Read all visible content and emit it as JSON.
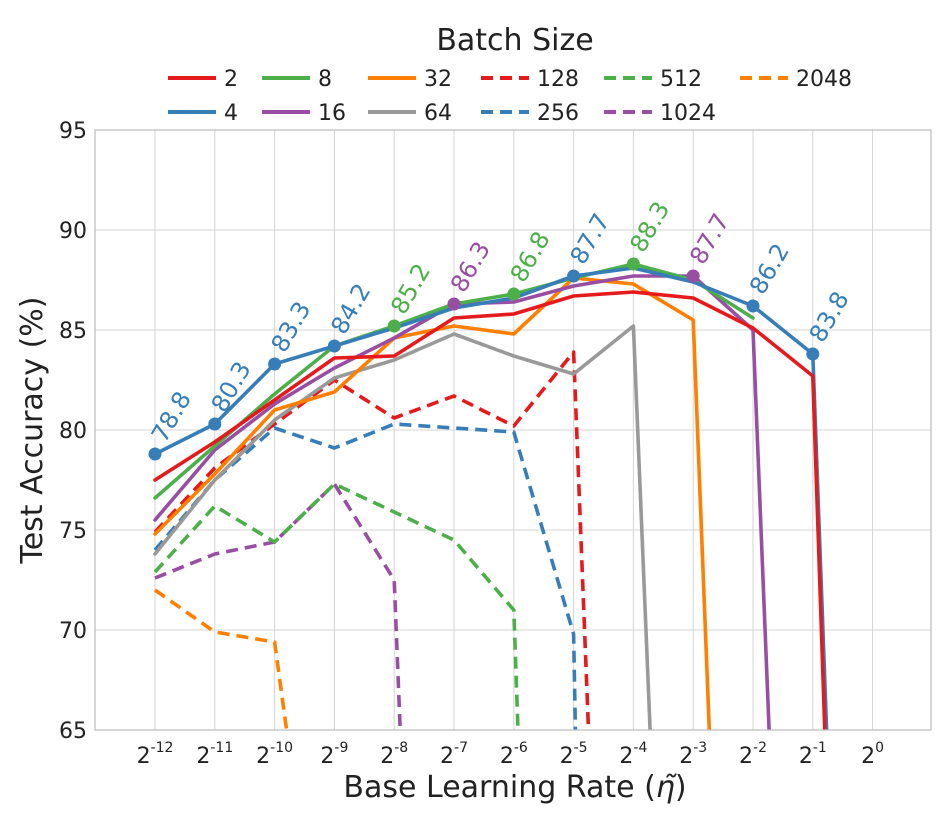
{
  "chart_data": {
    "type": "line",
    "xlabel_prefix": "Base Learning Rate (",
    "xlabel_symbol": "η̃",
    "xlabel_suffix": ")",
    "ylabel": "Test Accuracy (%)",
    "ylim": [
      65,
      95
    ],
    "yticks": [
      "65",
      "70",
      "75",
      "80",
      "85",
      "90",
      "95"
    ],
    "x_exponents": [
      -12,
      -11,
      -10,
      -9,
      -8,
      -7,
      -6,
      -5,
      -4,
      -3,
      -2,
      -1,
      0
    ],
    "x_tick_base": "2",
    "x_tick_labels": [
      "-12",
      "-11",
      "-10",
      "-9",
      "-8",
      "-7",
      "-6",
      "-5",
      "-4",
      "-3",
      "-2",
      "-1",
      "0"
    ],
    "grid": true,
    "legend": {
      "title": "Batch Size",
      "placement": "top"
    },
    "series": [
      {
        "name": "2",
        "color": "#e41a1c",
        "dash": false,
        "points": [
          [
            -12,
            77.5
          ],
          [
            -11,
            79.4
          ],
          [
            -10,
            81.5
          ],
          [
            -9,
            83.6
          ],
          [
            -8,
            83.7
          ],
          [
            -7,
            85.6
          ],
          [
            -6,
            85.8
          ],
          [
            -5,
            86.7
          ],
          [
            -4,
            86.9
          ],
          [
            -3,
            86.6
          ],
          [
            -2,
            85.1
          ],
          [
            -1,
            82.7
          ],
          [
            -0.8,
            65
          ]
        ]
      },
      {
        "name": "4",
        "color": "#377eb8",
        "dash": false,
        "points": [
          [
            -12,
            78.8
          ],
          [
            -11,
            80.3
          ],
          [
            -10,
            83.3
          ],
          [
            -9,
            84.2
          ],
          [
            -8,
            85.1
          ],
          [
            -7,
            86.1
          ],
          [
            -6,
            86.6
          ],
          [
            -5,
            87.7
          ],
          [
            -4,
            88.1
          ],
          [
            -3,
            87.4
          ],
          [
            -2,
            86.2
          ],
          [
            -1,
            83.8
          ],
          [
            -0.77,
            65
          ]
        ]
      },
      {
        "name": "8",
        "color": "#4daf4a",
        "dash": false,
        "points": [
          [
            -12,
            76.6
          ],
          [
            -11,
            79.2
          ],
          [
            -10,
            81.8
          ],
          [
            -9,
            84.2
          ],
          [
            -8,
            85.2
          ],
          [
            -7,
            86.3
          ],
          [
            -6,
            86.8
          ],
          [
            -5,
            87.6
          ],
          [
            -4,
            88.3
          ],
          [
            -3,
            87.5
          ],
          [
            -2,
            85.6
          ]
        ]
      },
      {
        "name": "16",
        "color": "#984ea3",
        "dash": false,
        "points": [
          [
            -12,
            75.5
          ],
          [
            -11,
            79.0
          ],
          [
            -10,
            81.3
          ],
          [
            -9,
            83.1
          ],
          [
            -8,
            84.6
          ],
          [
            -7,
            86.3
          ],
          [
            -6,
            86.4
          ],
          [
            -5,
            87.2
          ],
          [
            -4,
            87.7
          ],
          [
            -3,
            87.7
          ],
          [
            -2,
            85.0
          ],
          [
            -1.73,
            65
          ]
        ]
      },
      {
        "name": "32",
        "color": "#ff7f00",
        "dash": false,
        "points": [
          [
            -12,
            74.8
          ],
          [
            -11,
            77.8
          ],
          [
            -10,
            81.0
          ],
          [
            -9,
            81.9
          ],
          [
            -8,
            84.6
          ],
          [
            -7,
            85.2
          ],
          [
            -6,
            84.8
          ],
          [
            -5,
            87.6
          ],
          [
            -4,
            87.3
          ],
          [
            -3,
            85.5
          ],
          [
            -2.73,
            65
          ]
        ]
      },
      {
        "name": "64",
        "color": "#999999",
        "dash": false,
        "points": [
          [
            -12,
            73.8
          ],
          [
            -11,
            77.5
          ],
          [
            -10,
            80.5
          ],
          [
            -9,
            82.6
          ],
          [
            -8,
            83.5
          ],
          [
            -7,
            84.8
          ],
          [
            -6,
            83.7
          ],
          [
            -5,
            82.8
          ],
          [
            -4,
            85.2
          ],
          [
            -3.72,
            65
          ]
        ]
      },
      {
        "name": "128",
        "color": "#e41a1c",
        "dash": true,
        "points": [
          [
            -12,
            74.9
          ],
          [
            -11,
            78.1
          ],
          [
            -10,
            80.3
          ],
          [
            -9,
            82.5
          ],
          [
            -8,
            80.6
          ],
          [
            -7,
            81.7
          ],
          [
            -6,
            80.2
          ],
          [
            -5,
            83.9
          ],
          [
            -4.75,
            65
          ]
        ]
      },
      {
        "name": "256",
        "color": "#377eb8",
        "dash": true,
        "points": [
          [
            -12,
            74.0
          ],
          [
            -11,
            77.5
          ],
          [
            -10,
            80.1
          ],
          [
            -9,
            79.1
          ],
          [
            -8,
            80.3
          ],
          [
            -7,
            80.1
          ],
          [
            -6,
            79.9
          ],
          [
            -5,
            69.8
          ],
          [
            -4.97,
            65
          ]
        ]
      },
      {
        "name": "512",
        "color": "#4daf4a",
        "dash": true,
        "points": [
          [
            -12,
            72.9
          ],
          [
            -11,
            76.2
          ],
          [
            -10,
            74.4
          ],
          [
            -9,
            77.3
          ],
          [
            -8,
            75.9
          ],
          [
            -7,
            74.5
          ],
          [
            -6,
            71.0
          ],
          [
            -5.93,
            65
          ]
        ]
      },
      {
        "name": "1024",
        "color": "#984ea3",
        "dash": true,
        "points": [
          [
            -12,
            72.6
          ],
          [
            -11,
            73.8
          ],
          [
            -10,
            74.4
          ],
          [
            -9,
            77.3
          ],
          [
            -8,
            72.5
          ],
          [
            -7.9,
            65
          ]
        ]
      },
      {
        "name": "2048",
        "color": "#ff7f00",
        "dash": true,
        "points": [
          [
            -12,
            72.0
          ],
          [
            -11,
            69.9
          ],
          [
            -10,
            69.4
          ],
          [
            -9.8,
            65
          ]
        ]
      }
    ],
    "best_markers": [
      {
        "x": -12,
        "y": 78.8,
        "label": "78.8",
        "color": "#377eb8"
      },
      {
        "x": -11,
        "y": 80.3,
        "label": "80.3",
        "color": "#377eb8"
      },
      {
        "x": -10,
        "y": 83.3,
        "label": "83.3",
        "color": "#377eb8"
      },
      {
        "x": -9,
        "y": 84.2,
        "label": "84.2",
        "color": "#377eb8"
      },
      {
        "x": -8,
        "y": 85.2,
        "label": "85.2",
        "color": "#4daf4a"
      },
      {
        "x": -7,
        "y": 86.3,
        "label": "86.3",
        "color": "#984ea3"
      },
      {
        "x": -6,
        "y": 86.8,
        "label": "86.8",
        "color": "#4daf4a"
      },
      {
        "x": -5,
        "y": 87.7,
        "label": "87.7",
        "color": "#377eb8"
      },
      {
        "x": -4,
        "y": 88.3,
        "label": "88.3",
        "color": "#4daf4a"
      },
      {
        "x": -3,
        "y": 87.7,
        "label": "87.7",
        "color": "#984ea3"
      },
      {
        "x": -2,
        "y": 86.2,
        "label": "86.2",
        "color": "#377eb8"
      },
      {
        "x": -1,
        "y": 83.8,
        "label": "83.8",
        "color": "#377eb8"
      }
    ]
  }
}
